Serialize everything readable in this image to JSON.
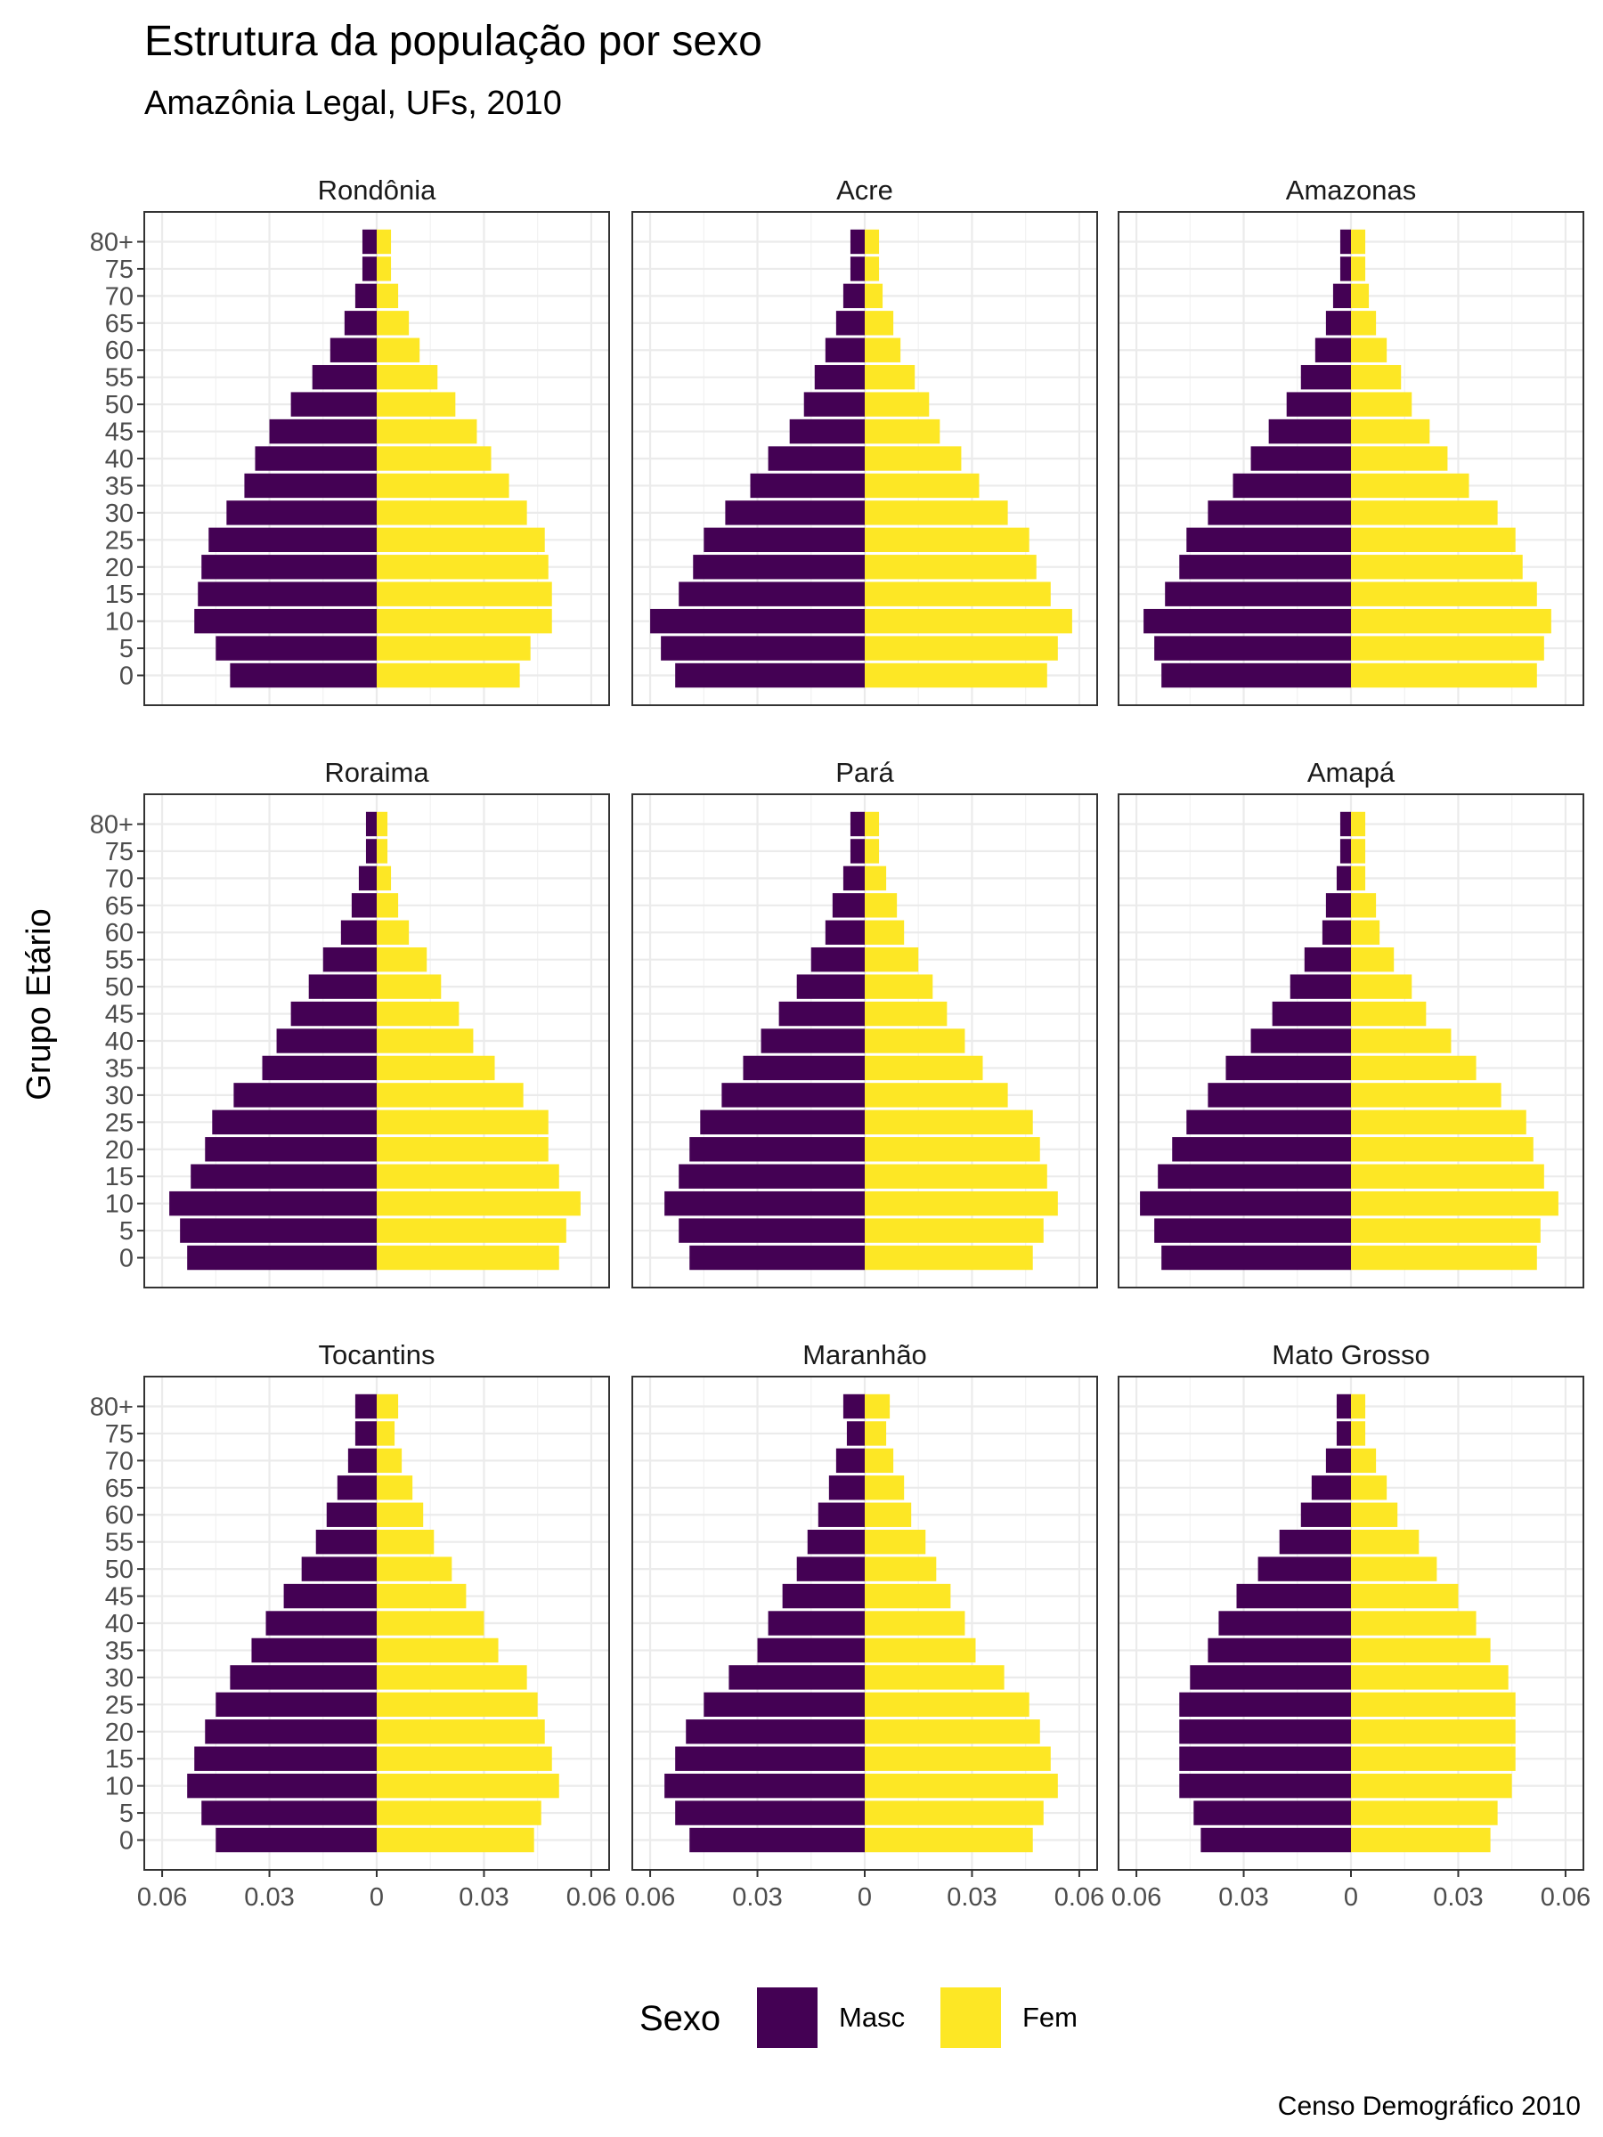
{
  "chart_data": {
    "type": "bar",
    "orientation": "horizontal",
    "chart_kind": "population pyramid, faceted 3x3",
    "title": "Estrutura da população por sexo",
    "subtitle": "Amazônia Legal, UFs, 2010",
    "ylabel": "Grupo Etário",
    "xlabel": "",
    "caption": "Censo Demográfico 2010",
    "xlim": [
      -0.065,
      0.065
    ],
    "x_ticks": [
      -0.06,
      -0.03,
      0,
      0.03,
      0.06
    ],
    "x_tick_labels": [
      "0.06",
      "0.03",
      "0",
      "0.03",
      "0.06"
    ],
    "age_groups": [
      "0",
      "5",
      "10",
      "15",
      "20",
      "25",
      "30",
      "35",
      "40",
      "45",
      "50",
      "55",
      "60",
      "65",
      "70",
      "75",
      "80+"
    ],
    "grid": true,
    "legend": {
      "title": "Sexo",
      "position": "bottom",
      "entries": [
        {
          "label": "Masc",
          "color": "#440154"
        },
        {
          "label": "Fem",
          "color": "#FDE725"
        }
      ]
    },
    "facets": [
      {
        "name": "Rondônia",
        "masc": [
          0.041,
          0.045,
          0.051,
          0.05,
          0.049,
          0.047,
          0.042,
          0.037,
          0.034,
          0.03,
          0.024,
          0.018,
          0.013,
          0.009,
          0.006,
          0.004,
          0.004
        ],
        "fem": [
          0.04,
          0.043,
          0.049,
          0.049,
          0.048,
          0.047,
          0.042,
          0.037,
          0.032,
          0.028,
          0.022,
          0.017,
          0.012,
          0.009,
          0.006,
          0.004,
          0.004
        ]
      },
      {
        "name": "Acre",
        "masc": [
          0.053,
          0.057,
          0.06,
          0.052,
          0.048,
          0.045,
          0.039,
          0.032,
          0.027,
          0.021,
          0.017,
          0.014,
          0.011,
          0.008,
          0.006,
          0.004,
          0.004
        ],
        "fem": [
          0.051,
          0.054,
          0.058,
          0.052,
          0.048,
          0.046,
          0.04,
          0.032,
          0.027,
          0.021,
          0.018,
          0.014,
          0.01,
          0.008,
          0.005,
          0.004,
          0.004
        ]
      },
      {
        "name": "Amazonas",
        "masc": [
          0.053,
          0.055,
          0.058,
          0.052,
          0.048,
          0.046,
          0.04,
          0.033,
          0.028,
          0.023,
          0.018,
          0.014,
          0.01,
          0.007,
          0.005,
          0.003,
          0.003
        ],
        "fem": [
          0.052,
          0.054,
          0.056,
          0.052,
          0.048,
          0.046,
          0.041,
          0.033,
          0.027,
          0.022,
          0.017,
          0.014,
          0.01,
          0.007,
          0.005,
          0.004,
          0.004
        ]
      },
      {
        "name": "Roraima",
        "masc": [
          0.053,
          0.055,
          0.058,
          0.052,
          0.048,
          0.046,
          0.04,
          0.032,
          0.028,
          0.024,
          0.019,
          0.015,
          0.01,
          0.007,
          0.005,
          0.003,
          0.003
        ],
        "fem": [
          0.051,
          0.053,
          0.057,
          0.051,
          0.048,
          0.048,
          0.041,
          0.033,
          0.027,
          0.023,
          0.018,
          0.014,
          0.009,
          0.006,
          0.004,
          0.003,
          0.003
        ]
      },
      {
        "name": "Pará",
        "masc": [
          0.049,
          0.052,
          0.056,
          0.052,
          0.049,
          0.046,
          0.04,
          0.034,
          0.029,
          0.024,
          0.019,
          0.015,
          0.011,
          0.009,
          0.006,
          0.004,
          0.004
        ],
        "fem": [
          0.047,
          0.05,
          0.054,
          0.051,
          0.049,
          0.047,
          0.04,
          0.033,
          0.028,
          0.023,
          0.019,
          0.015,
          0.011,
          0.009,
          0.006,
          0.004,
          0.004
        ]
      },
      {
        "name": "Amapá",
        "masc": [
          0.053,
          0.055,
          0.059,
          0.054,
          0.05,
          0.046,
          0.04,
          0.035,
          0.028,
          0.022,
          0.017,
          0.013,
          0.008,
          0.007,
          0.004,
          0.003,
          0.003
        ],
        "fem": [
          0.052,
          0.053,
          0.058,
          0.054,
          0.051,
          0.049,
          0.042,
          0.035,
          0.028,
          0.021,
          0.017,
          0.012,
          0.008,
          0.007,
          0.004,
          0.004,
          0.004
        ]
      },
      {
        "name": "Tocantins",
        "masc": [
          0.045,
          0.049,
          0.053,
          0.051,
          0.048,
          0.045,
          0.041,
          0.035,
          0.031,
          0.026,
          0.021,
          0.017,
          0.014,
          0.011,
          0.008,
          0.006,
          0.006
        ],
        "fem": [
          0.044,
          0.046,
          0.051,
          0.049,
          0.047,
          0.045,
          0.042,
          0.034,
          0.03,
          0.025,
          0.021,
          0.016,
          0.013,
          0.01,
          0.007,
          0.005,
          0.006
        ]
      },
      {
        "name": "Maranhão",
        "masc": [
          0.049,
          0.053,
          0.056,
          0.053,
          0.05,
          0.045,
          0.038,
          0.03,
          0.027,
          0.023,
          0.019,
          0.016,
          0.013,
          0.01,
          0.008,
          0.005,
          0.006
        ],
        "fem": [
          0.047,
          0.05,
          0.054,
          0.052,
          0.049,
          0.046,
          0.039,
          0.031,
          0.028,
          0.024,
          0.02,
          0.017,
          0.013,
          0.011,
          0.008,
          0.006,
          0.007
        ]
      },
      {
        "name": "Mato Grosso",
        "masc": [
          0.042,
          0.044,
          0.048,
          0.048,
          0.048,
          0.048,
          0.045,
          0.04,
          0.037,
          0.032,
          0.026,
          0.02,
          0.014,
          0.011,
          0.007,
          0.004,
          0.004
        ],
        "fem": [
          0.039,
          0.041,
          0.045,
          0.046,
          0.046,
          0.046,
          0.044,
          0.039,
          0.035,
          0.03,
          0.024,
          0.019,
          0.013,
          0.01,
          0.007,
          0.004,
          0.004
        ]
      }
    ]
  }
}
